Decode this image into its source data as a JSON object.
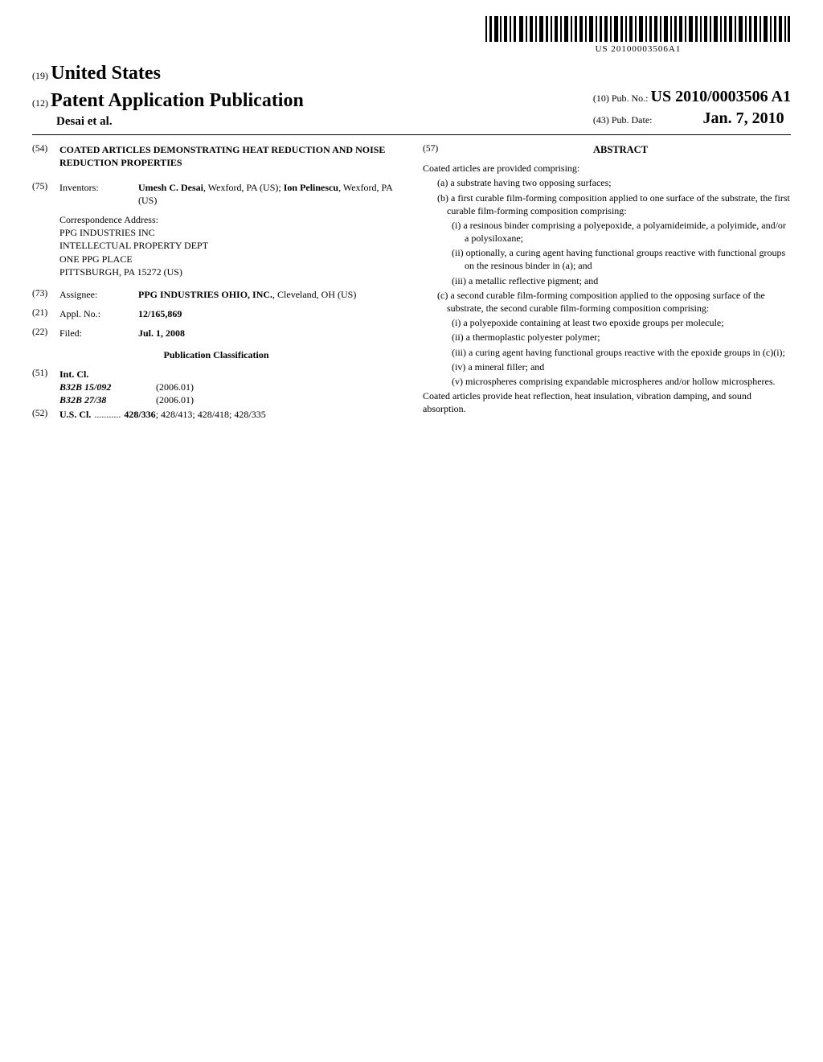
{
  "barcode_number": "US 20100003506A1",
  "header": {
    "line1_num": "(19)",
    "country": "United States",
    "line2_num": "(12)",
    "pub_type": "Patent Application Publication",
    "authors": "Desai et al.",
    "pubno_num": "(10)",
    "pubno_label": "Pub. No.:",
    "pubno_val": "US 2010/0003506 A1",
    "pubdate_num": "(43)",
    "pubdate_label": "Pub. Date:",
    "pubdate_val": "Jan. 7, 2010"
  },
  "title": {
    "num": "(54)",
    "text": "COATED ARTICLES DEMONSTRATING HEAT REDUCTION AND NOISE REDUCTION PROPERTIES"
  },
  "inventors": {
    "num": "(75)",
    "label": "Inventors:",
    "text_html": "<b>Umesh C. Desai</b>, Wexford, PA (US); <b>Ion Pelinescu</b>, Wexford, PA (US)"
  },
  "correspondence": {
    "label": "Correspondence Address:",
    "lines": [
      "PPG INDUSTRIES INC",
      "INTELLECTUAL PROPERTY DEPT",
      "ONE PPG PLACE",
      "PITTSBURGH, PA 15272 (US)"
    ]
  },
  "assignee": {
    "num": "(73)",
    "label": "Assignee:",
    "text_html": "<b>PPG INDUSTRIES OHIO, INC.</b>, Cleveland, OH (US)"
  },
  "appl": {
    "num": "(21)",
    "label": "Appl. No.:",
    "val": "12/165,869"
  },
  "filed": {
    "num": "(22)",
    "label": "Filed:",
    "val": "Jul. 1, 2008"
  },
  "pubclass_hdr": "Publication Classification",
  "intcl": {
    "num": "(51)",
    "label": "Int. Cl.",
    "rows": [
      {
        "code": "B32B  15/092",
        "year": "(2006.01)"
      },
      {
        "code": "B32B  27/38",
        "year": "(2006.01)"
      }
    ]
  },
  "uscl": {
    "num": "(52)",
    "label": "U.S. Cl.",
    "dots": "...........",
    "val_html": "<b>428/336</b>; 428/413; 428/418; 428/335"
  },
  "abstract": {
    "num": "(57)",
    "title": "ABSTRACT",
    "intro": "Coated articles are provided comprising:",
    "items": [
      {
        "lvl": 1,
        "text": "(a) a substrate having two opposing surfaces;"
      },
      {
        "lvl": 1,
        "text": "(b) a first curable film-forming composition applied to one surface of the substrate, the first curable film-forming composition comprising:"
      },
      {
        "lvl": 2,
        "text": "(i) a resinous binder comprising a polyepoxide, a polyamideimide, a polyimide, and/or a polysiloxane;"
      },
      {
        "lvl": 2,
        "text": "(ii) optionally, a curing agent having functional groups reactive with functional groups on the resinous binder in (a); and"
      },
      {
        "lvl": 2,
        "text": "(iii) a metallic reflective pigment; and"
      },
      {
        "lvl": 1,
        "text": "(c) a second curable film-forming composition applied to the opposing surface of the substrate, the second curable film-forming composition comprising:"
      },
      {
        "lvl": 2,
        "text": "(i) a polyepoxide containing at least two epoxide groups per molecule;"
      },
      {
        "lvl": 2,
        "text": "(ii) a thermoplastic polyester polymer;"
      },
      {
        "lvl": 2,
        "text": "(iii) a curing agent having functional groups reactive with the epoxide groups in (c)(i);"
      },
      {
        "lvl": 2,
        "text": "(iv) a mineral filler; and"
      },
      {
        "lvl": 2,
        "text": "(v) microspheres comprising expandable microspheres and/or hollow microspheres."
      }
    ],
    "closing": "Coated articles provide heat reflection, heat insulation, vibration damping, and sound absorption."
  }
}
